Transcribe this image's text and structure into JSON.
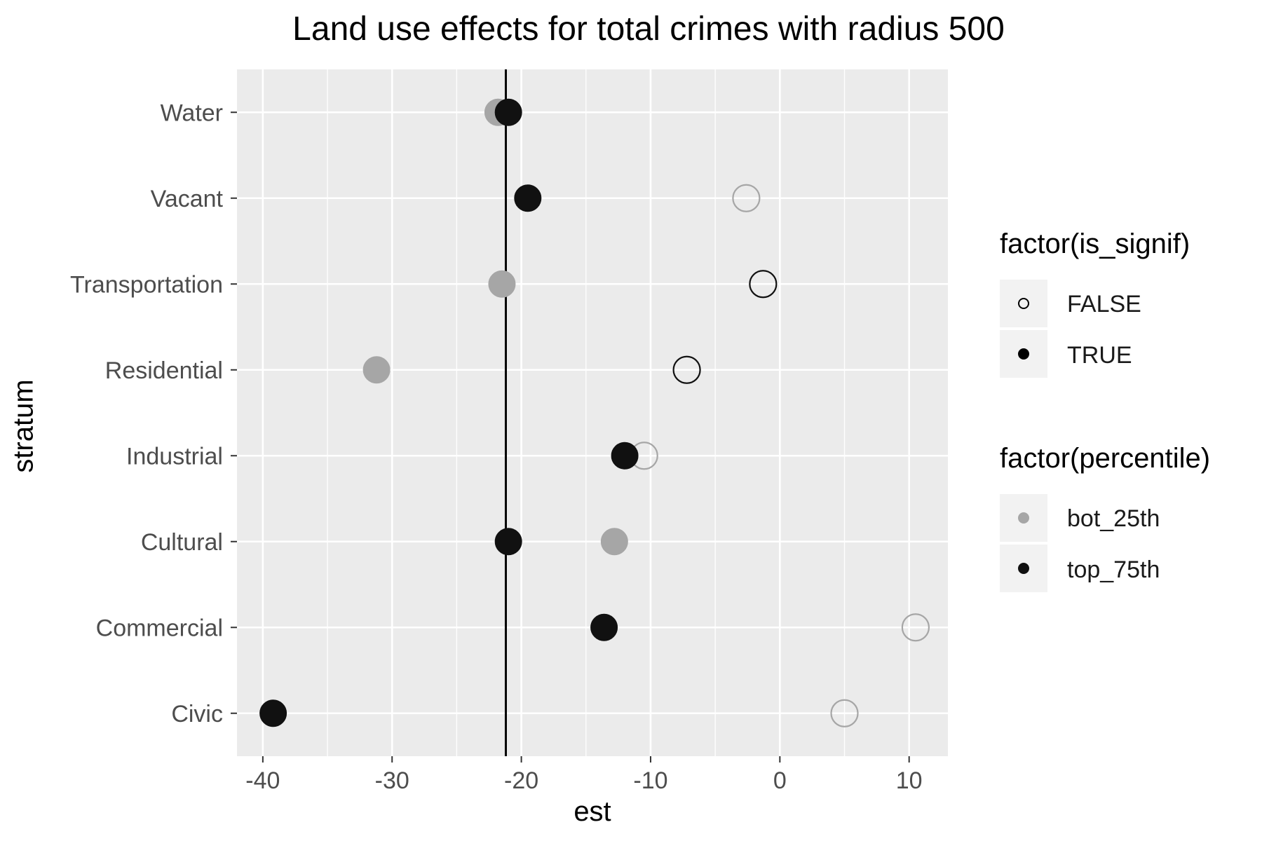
{
  "chart_data": {
    "type": "scatter",
    "title": "Land use effects for total crimes with radius 500",
    "xlabel": "est",
    "ylabel": "stratum",
    "xlim": [
      -42,
      13
    ],
    "x_ticks": [
      -40,
      -30,
      -20,
      -10,
      0,
      10
    ],
    "x_tick_labels": [
      "-40",
      "-30",
      "-20",
      "-10",
      "0",
      "10"
    ],
    "categories": [
      "Water",
      "Vacant",
      "Transportation",
      "Residential",
      "Industrial",
      "Cultural",
      "Commercial",
      "Civic"
    ],
    "vline": -21.2,
    "grid": true,
    "panel_background": "#ebebeb",
    "series": [
      {
        "name": "bot_25th",
        "color": "#a6a6a6",
        "points": [
          {
            "stratum": "Water",
            "est": -21.8,
            "is_signif": "TRUE"
          },
          {
            "stratum": "Vacant",
            "est": -2.6,
            "is_signif": "FALSE"
          },
          {
            "stratum": "Transportation",
            "est": -21.5,
            "is_signif": "TRUE"
          },
          {
            "stratum": "Residential",
            "est": -31.2,
            "is_signif": "TRUE"
          },
          {
            "stratum": "Industrial",
            "est": -10.5,
            "is_signif": "FALSE"
          },
          {
            "stratum": "Cultural",
            "est": -12.8,
            "is_signif": "TRUE"
          },
          {
            "stratum": "Commercial",
            "est": 10.5,
            "is_signif": "FALSE"
          },
          {
            "stratum": "Civic",
            "est": 5.0,
            "is_signif": "FALSE"
          }
        ]
      },
      {
        "name": "top_75th",
        "color": "#111111",
        "points": [
          {
            "stratum": "Water",
            "est": -21.0,
            "is_signif": "TRUE"
          },
          {
            "stratum": "Vacant",
            "est": -19.5,
            "is_signif": "TRUE"
          },
          {
            "stratum": "Transportation",
            "est": -1.3,
            "is_signif": "FALSE"
          },
          {
            "stratum": "Residential",
            "est": -7.2,
            "is_signif": "FALSE"
          },
          {
            "stratum": "Industrial",
            "est": -12.0,
            "is_signif": "TRUE"
          },
          {
            "stratum": "Cultural",
            "est": -21.0,
            "is_signif": "TRUE"
          },
          {
            "stratum": "Commercial",
            "est": -13.6,
            "is_signif": "TRUE"
          },
          {
            "stratum": "Civic",
            "est": -39.2,
            "is_signif": "TRUE"
          }
        ]
      }
    ],
    "legends": [
      {
        "title": "factor(is_signif)",
        "entries": [
          "FALSE",
          "TRUE"
        ]
      },
      {
        "title": "factor(percentile)",
        "entries": [
          "bot_25th",
          "top_75th"
        ]
      }
    ],
    "legend_position": "right"
  }
}
